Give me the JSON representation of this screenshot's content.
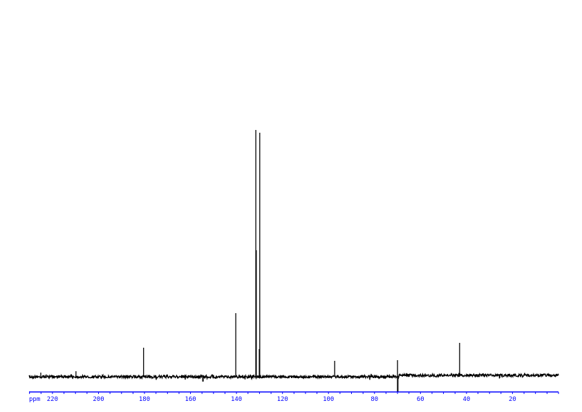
{
  "chart_data": {
    "type": "line",
    "title": "",
    "xlabel": "ppm",
    "ylabel": "",
    "x_reversed": true,
    "xlim": [
      230.2,
      0
    ],
    "x_ticks": [
      220,
      200,
      180,
      160,
      140,
      120,
      100,
      80,
      60,
      40,
      20
    ],
    "x_minor_tick_step": 5,
    "grid": false,
    "colors": {
      "spectrum": "#000000",
      "axis": "#0000ff"
    },
    "peaks": [
      {
        "ppm": 225.1,
        "intensity": 6
      },
      {
        "ppm": 209.8,
        "intensity": 8
      },
      {
        "ppm": 180.4,
        "intensity": 42
      },
      {
        "ppm": 154.6,
        "intensity": -7
      },
      {
        "ppm": 140.3,
        "intensity": 92
      },
      {
        "ppm": 131.6,
        "intensity": 357
      },
      {
        "ppm": 131.4,
        "intensity": 183
      },
      {
        "ppm": 130.1,
        "intensity": 40
      },
      {
        "ppm": 129.9,
        "intensity": 353
      },
      {
        "ppm": 97.3,
        "intensity": 23
      },
      {
        "ppm": 70.0,
        "intensity": 24
      },
      {
        "ppm": 69.9,
        "intensity": -22
      },
      {
        "ppm": 43.0,
        "intensity": 49
      }
    ]
  }
}
